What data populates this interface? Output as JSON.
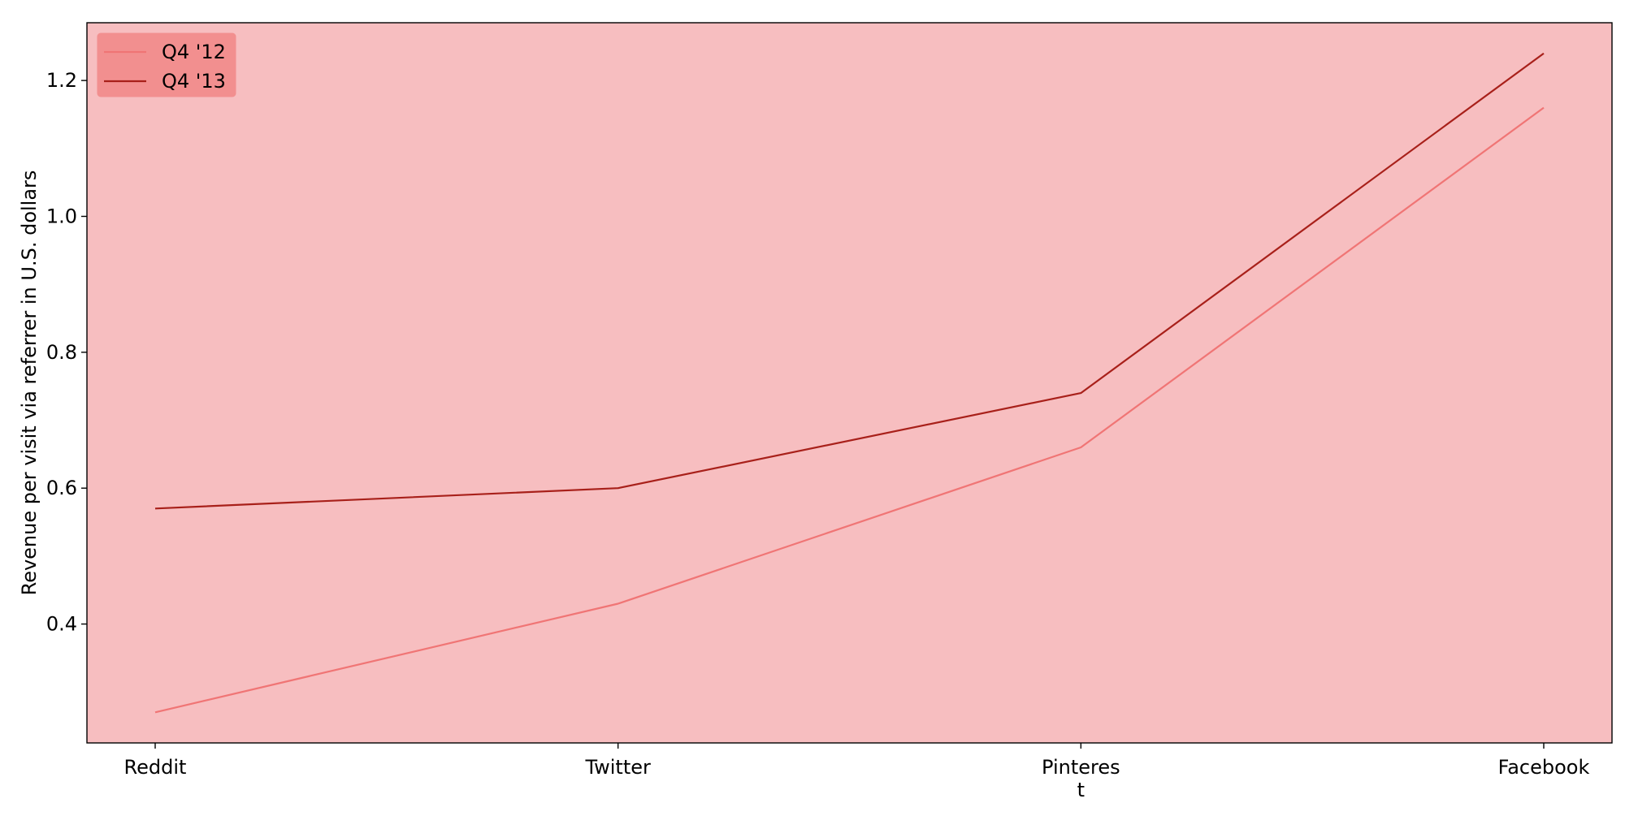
{
  "chart_data": {
    "type": "line",
    "categories": [
      "Reddit",
      "Twitter",
      "Pinteres\nt",
      "Facebook"
    ],
    "series": [
      {
        "name": "Q4 '12",
        "color": "#f07575",
        "values": [
          0.27,
          0.43,
          0.66,
          1.16
        ]
      },
      {
        "name": "Q4 '13",
        "color": "#a8201a",
        "values": [
          0.57,
          0.6,
          0.74,
          1.24
        ]
      }
    ],
    "title": "",
    "xlabel": "",
    "ylabel": "Revenue per visit via referrer in U.S. dollars",
    "ylim": [
      0.225,
      1.285
    ],
    "yticks": [
      0.4,
      0.6,
      0.8,
      1.0,
      1.2
    ],
    "ytick_labels": [
      "0.4",
      "0.6",
      "0.8",
      "1.0",
      "1.2"
    ],
    "grid": false,
    "legend_position": "top-left",
    "colors": {
      "plot_background": "#f7bec0",
      "legend_background": "#f28f8f",
      "axis": "#000000"
    }
  }
}
